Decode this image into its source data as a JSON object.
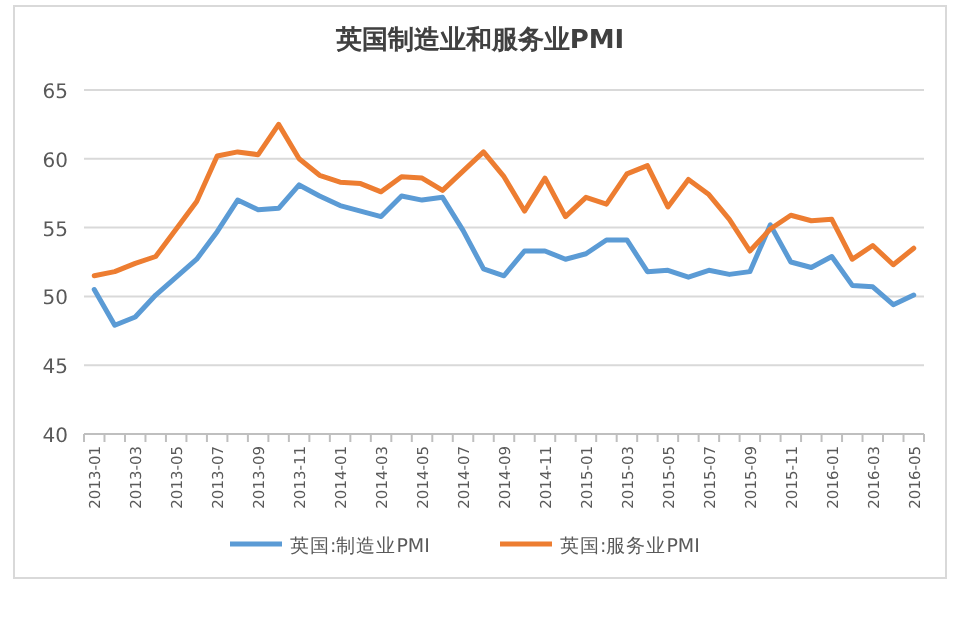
{
  "chart_data": {
    "type": "line",
    "title": "英国制造业和服务业PMI",
    "categories": [
      "2013-01",
      null,
      "2013-03",
      null,
      "2013-05",
      null,
      "2013-07",
      null,
      "2013-09",
      null,
      "2013-11",
      null,
      "2014-01",
      null,
      "2014-03",
      null,
      "2014-05",
      null,
      "2014-07",
      null,
      "2014-09",
      null,
      "2014-11",
      null,
      "2015-01",
      null,
      "2015-03",
      null,
      "2015-05",
      null,
      "2015-07",
      null,
      "2015-09",
      null,
      "2015-11",
      null,
      "2016-01",
      null,
      "2016-03",
      null,
      "2016-05"
    ],
    "series": [
      {
        "name": "英国:制造业PMI",
        "color": "#5b9bd5",
        "values": [
          50.5,
          47.9,
          48.5,
          50.1,
          51.4,
          52.7,
          54.7,
          57.0,
          56.3,
          56.4,
          58.1,
          57.3,
          56.6,
          56.2,
          55.8,
          57.3,
          57.0,
          57.2,
          54.8,
          52.0,
          51.5,
          53.3,
          53.3,
          52.7,
          53.1,
          54.1,
          54.1,
          51.8,
          51.9,
          51.4,
          51.9,
          51.6,
          51.8,
          55.2,
          52.5,
          52.1,
          52.9,
          50.8,
          50.7,
          49.4,
          50.1
        ]
      },
      {
        "name": "英国:服务业PMI",
        "color": "#ed7d31",
        "values": [
          51.5,
          51.8,
          52.4,
          52.9,
          54.9,
          56.9,
          60.2,
          60.5,
          60.3,
          62.5,
          60.0,
          58.8,
          58.3,
          58.2,
          57.6,
          58.7,
          58.6,
          57.7,
          59.1,
          60.5,
          58.7,
          56.2,
          58.6,
          55.8,
          57.2,
          56.7,
          58.9,
          59.5,
          56.5,
          58.5,
          57.4,
          55.6,
          53.3,
          54.9,
          55.9,
          55.5,
          55.6,
          52.7,
          53.7,
          52.3,
          53.5
        ]
      }
    ],
    "ylim": [
      40,
      65
    ],
    "yticks": [
      40,
      45,
      50,
      55,
      60,
      65
    ],
    "grid": "y",
    "legend": "bottom",
    "marker": "none",
    "line_style": "solid"
  }
}
